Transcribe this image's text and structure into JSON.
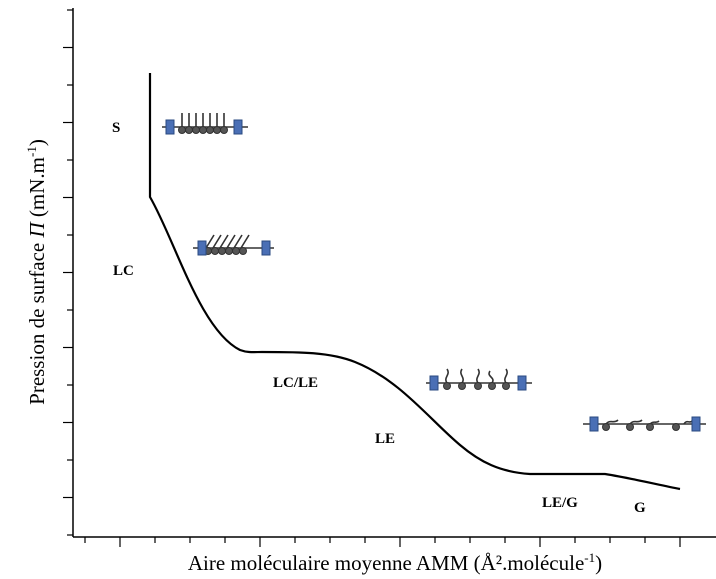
{
  "y_label": {
    "text": "Pression de surface ",
    "symbol": "Π",
    "unit": " (mN.m",
    "sup": "-1",
    "close": ")"
  },
  "x_label": {
    "text": "Aire moléculaire moyenne AMM (Å².molécule",
    "sup": "-1",
    "close": ")"
  },
  "phases": [
    "S",
    "LC",
    "LC/LE",
    "LE",
    "LE/G",
    "G"
  ]
}
